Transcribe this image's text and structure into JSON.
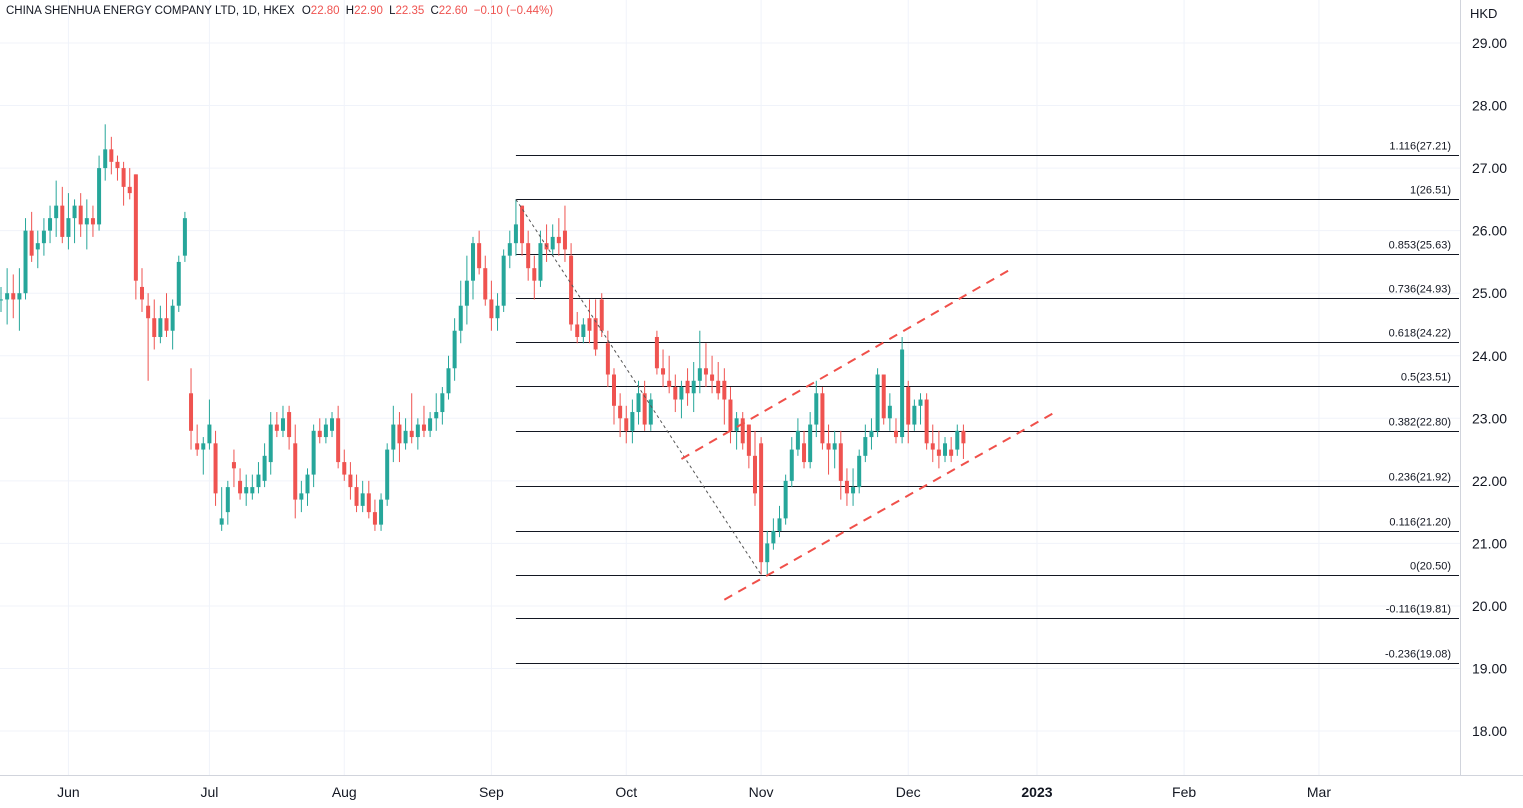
{
  "legend": {
    "symbol": "CHINA SHENHUA ENERGY COMPANY LTD, 1D, HKEX",
    "open_label": "O",
    "open": "22.80",
    "high_label": "H",
    "high": "22.90",
    "low_label": "L",
    "low": "22.35",
    "close_label": "C",
    "close": "22.60",
    "change": "−0.10 (−0.44%)"
  },
  "currency": "HKD",
  "colors": {
    "up": "#26a69a",
    "down": "#ef5350",
    "grid": "#f0f3fa",
    "fib": "#131722",
    "channel": "#f0504a",
    "axis_border": "#d1d4dc"
  },
  "chart_data": {
    "type": "candlestick",
    "title": "CHINA SHENHUA ENERGY COMPANY LTD, 1D, HKEX",
    "ylabel": "HKD",
    "ylim": [
      17.3,
      29.3
    ],
    "y_ticks": [
      "18.00",
      "19.00",
      "20.00",
      "21.00",
      "22.00",
      "23.00",
      "24.00",
      "25.00",
      "26.00",
      "27.00",
      "28.00",
      "29.00"
    ],
    "x_ticks": [
      {
        "label": "Jun",
        "bar": 11,
        "bold": false
      },
      {
        "label": "Jul",
        "bar": 34,
        "bold": false
      },
      {
        "label": "Aug",
        "bar": 56,
        "bold": false
      },
      {
        "label": "Sep",
        "bar": 80,
        "bold": false
      },
      {
        "label": "Oct",
        "bar": 102,
        "bold": false
      },
      {
        "label": "Nov",
        "bar": 124,
        "bold": false
      },
      {
        "label": "Dec",
        "bar": 148,
        "bold": false
      },
      {
        "label": "2023",
        "bar": 169,
        "bold": true
      },
      {
        "label": "Feb",
        "bar": 193,
        "bold": false
      },
      {
        "label": "Mar",
        "bar": 215,
        "bold": false
      }
    ],
    "bar_scale": {
      "first_bar_x": 1,
      "bar_spacing": 6.13
    },
    "candles": [
      [
        24.9,
        25.1,
        24.7,
        24.9
      ],
      [
        24.9,
        25.4,
        24.5,
        25.0
      ],
      [
        25.0,
        25.3,
        24.6,
        24.9
      ],
      [
        24.9,
        25.4,
        24.4,
        25.0
      ],
      [
        25.0,
        26.2,
        24.9,
        26.0
      ],
      [
        26.0,
        26.3,
        25.5,
        25.6
      ],
      [
        25.7,
        26.0,
        25.4,
        25.8
      ],
      [
        25.8,
        26.2,
        25.6,
        26.0
      ],
      [
        26.0,
        26.4,
        25.8,
        26.2
      ],
      [
        26.2,
        26.8,
        25.9,
        26.4
      ],
      [
        26.4,
        26.7,
        25.8,
        25.9
      ],
      [
        25.9,
        26.6,
        25.7,
        26.2
      ],
      [
        26.2,
        26.5,
        25.8,
        26.4
      ],
      [
        26.4,
        26.6,
        25.9,
        26.1
      ],
      [
        26.1,
        26.5,
        25.7,
        26.2
      ],
      [
        26.2,
        26.4,
        25.9,
        26.1
      ],
      [
        26.1,
        27.2,
        26.0,
        27.0
      ],
      [
        27.0,
        27.7,
        26.8,
        27.3
      ],
      [
        27.3,
        27.5,
        26.9,
        27.1
      ],
      [
        27.1,
        27.2,
        26.8,
        27.0
      ],
      [
        27.0,
        27.1,
        26.4,
        26.7
      ],
      [
        26.7,
        27.0,
        26.5,
        26.6
      ],
      [
        26.9,
        26.9,
        24.9,
        25.2
      ],
      [
        25.1,
        25.4,
        24.7,
        24.9
      ],
      [
        24.8,
        25.0,
        23.6,
        24.6
      ],
      [
        24.6,
        24.9,
        24.1,
        24.3
      ],
      [
        24.3,
        24.8,
        24.2,
        24.6
      ],
      [
        24.6,
        25.0,
        24.3,
        24.4
      ],
      [
        24.4,
        24.9,
        24.1,
        24.8
      ],
      [
        24.8,
        25.6,
        24.7,
        25.5
      ],
      [
        25.6,
        26.3,
        25.5,
        26.2
      ],
      [
        23.4,
        23.8,
        22.5,
        22.8
      ],
      [
        22.6,
        22.9,
        22.4,
        22.5
      ],
      [
        22.5,
        22.7,
        22.1,
        22.6
      ],
      [
        22.6,
        23.3,
        22.5,
        22.9
      ],
      [
        22.6,
        22.8,
        21.6,
        21.8
      ],
      [
        21.3,
        21.9,
        21.2,
        21.4
      ],
      [
        21.5,
        22.0,
        21.3,
        21.9
      ],
      [
        22.3,
        22.5,
        21.9,
        22.2
      ],
      [
        22.0,
        22.2,
        21.7,
        21.8
      ],
      [
        21.8,
        22.1,
        21.6,
        21.9
      ],
      [
        21.8,
        22.1,
        21.7,
        21.9
      ],
      [
        21.9,
        22.3,
        21.8,
        22.1
      ],
      [
        22.0,
        22.6,
        21.9,
        22.4
      ],
      [
        22.3,
        23.1,
        22.1,
        22.9
      ],
      [
        22.9,
        23.1,
        22.7,
        22.8
      ],
      [
        22.8,
        23.2,
        22.7,
        23.0
      ],
      [
        23.1,
        23.2,
        22.5,
        22.7
      ],
      [
        22.6,
        22.9,
        21.4,
        21.7
      ],
      [
        21.7,
        22.0,
        21.5,
        21.8
      ],
      [
        21.8,
        22.2,
        21.6,
        22.1
      ],
      [
        22.1,
        22.9,
        21.9,
        22.8
      ],
      [
        22.8,
        23.0,
        22.6,
        22.7
      ],
      [
        22.7,
        23.0,
        22.6,
        22.9
      ],
      [
        22.8,
        23.1,
        22.7,
        23.0
      ],
      [
        23.0,
        23.2,
        22.2,
        22.3
      ],
      [
        22.3,
        22.5,
        22.0,
        22.1
      ],
      [
        22.1,
        22.3,
        21.7,
        21.9
      ],
      [
        21.9,
        22.1,
        21.5,
        21.6
      ],
      [
        21.6,
        22.0,
        21.5,
        21.8
      ],
      [
        21.8,
        22.0,
        21.4,
        21.5
      ],
      [
        21.5,
        21.7,
        21.2,
        21.3
      ],
      [
        21.3,
        21.8,
        21.2,
        21.7
      ],
      [
        21.7,
        22.6,
        21.6,
        22.5
      ],
      [
        22.5,
        23.2,
        22.3,
        22.9
      ],
      [
        22.9,
        23.1,
        22.3,
        22.6
      ],
      [
        22.6,
        23.0,
        22.5,
        22.8
      ],
      [
        22.8,
        23.4,
        22.6,
        22.7
      ],
      [
        22.7,
        23.0,
        22.5,
        22.9
      ],
      [
        22.9,
        23.2,
        22.7,
        22.8
      ],
      [
        22.8,
        23.1,
        22.7,
        23.0
      ],
      [
        23.0,
        23.4,
        22.8,
        23.1
      ],
      [
        23.1,
        23.5,
        22.9,
        23.4
      ],
      [
        23.4,
        24.0,
        23.3,
        23.8
      ],
      [
        23.8,
        24.6,
        23.6,
        24.4
      ],
      [
        24.4,
        25.2,
        24.2,
        24.8
      ],
      [
        24.8,
        25.6,
        24.5,
        25.2
      ],
      [
        25.2,
        25.9,
        24.9,
        25.8
      ],
      [
        25.8,
        26.0,
        25.3,
        25.4
      ],
      [
        25.4,
        25.6,
        24.8,
        24.9
      ],
      [
        24.9,
        25.2,
        24.4,
        24.6
      ],
      [
        24.6,
        25.0,
        24.4,
        24.8
      ],
      [
        24.8,
        25.7,
        24.7,
        25.6
      ],
      [
        25.6,
        26.0,
        25.4,
        25.8
      ],
      [
        25.8,
        26.5,
        25.6,
        26.1
      ],
      [
        26.4,
        26.4,
        25.6,
        25.8
      ],
      [
        25.8,
        26.0,
        25.2,
        25.4
      ],
      [
        25.4,
        25.6,
        24.9,
        25.2
      ],
      [
        25.2,
        26.0,
        25.1,
        25.8
      ],
      [
        25.8,
        26.1,
        25.5,
        25.7
      ],
      [
        25.7,
        26.1,
        25.6,
        25.9
      ],
      [
        25.9,
        26.2,
        25.6,
        25.8
      ],
      [
        26.0,
        26.4,
        25.5,
        25.7
      ],
      [
        25.6,
        25.8,
        24.4,
        24.5
      ],
      [
        24.5,
        24.7,
        24.2,
        24.3
      ],
      [
        24.3,
        24.6,
        24.2,
        24.5
      ],
      [
        24.6,
        24.9,
        24.2,
        24.4
      ],
      [
        24.6,
        24.9,
        24.0,
        24.1
      ],
      [
        24.9,
        25.0,
        24.3,
        24.4
      ],
      [
        24.2,
        24.4,
        23.5,
        23.7
      ],
      [
        23.7,
        23.8,
        22.9,
        23.2
      ],
      [
        23.2,
        23.4,
        22.7,
        23.0
      ],
      [
        23.0,
        23.2,
        22.6,
        22.8
      ],
      [
        22.8,
        23.3,
        22.6,
        23.1
      ],
      [
        23.1,
        23.6,
        22.9,
        23.4
      ],
      [
        23.4,
        23.6,
        22.8,
        22.9
      ],
      [
        22.9,
        23.4,
        22.8,
        23.3
      ],
      [
        24.3,
        24.4,
        23.7,
        23.8
      ],
      [
        23.8,
        24.1,
        23.5,
        23.7
      ],
      [
        23.6,
        24.0,
        23.4,
        23.5
      ],
      [
        23.5,
        23.7,
        23.1,
        23.3
      ],
      [
        23.3,
        23.6,
        23.0,
        23.5
      ],
      [
        23.6,
        23.8,
        23.2,
        23.4
      ],
      [
        23.4,
        23.9,
        23.1,
        23.6
      ],
      [
        23.6,
        24.4,
        23.4,
        23.8
      ],
      [
        23.8,
        24.2,
        23.5,
        23.7
      ],
      [
        23.7,
        24.0,
        23.4,
        23.6
      ],
      [
        23.6,
        23.9,
        23.3,
        23.4
      ],
      [
        23.6,
        23.8,
        22.9,
        23.3
      ],
      [
        23.3,
        23.5,
        22.6,
        22.8
      ],
      [
        22.8,
        23.1,
        22.5,
        23.0
      ],
      [
        23.0,
        23.1,
        22.5,
        22.6
      ],
      [
        22.9,
        22.9,
        22.2,
        22.4
      ],
      [
        22.4,
        22.8,
        21.6,
        21.8
      ],
      [
        22.6,
        22.7,
        20.5,
        20.7
      ],
      [
        20.7,
        21.2,
        20.5,
        21.0
      ],
      [
        21.0,
        21.4,
        20.9,
        21.2
      ],
      [
        21.2,
        21.6,
        21.1,
        21.4
      ],
      [
        21.4,
        22.1,
        21.3,
        22.0
      ],
      [
        22.0,
        22.7,
        21.9,
        22.5
      ],
      [
        22.5,
        23.0,
        22.4,
        22.8
      ],
      [
        22.6,
        22.8,
        22.2,
        22.3
      ],
      [
        22.3,
        23.1,
        22.2,
        22.9
      ],
      [
        22.9,
        23.6,
        22.7,
        23.4
      ],
      [
        23.4,
        23.5,
        22.5,
        22.6
      ],
      [
        22.6,
        22.9,
        22.1,
        22.5
      ],
      [
        22.5,
        22.8,
        22.2,
        22.6
      ],
      [
        22.6,
        22.8,
        21.7,
        22.0
      ],
      [
        22.0,
        22.2,
        21.6,
        21.8
      ],
      [
        21.8,
        22.2,
        21.6,
        21.9
      ],
      [
        21.9,
        22.5,
        21.8,
        22.4
      ],
      [
        22.4,
        22.9,
        22.3,
        22.7
      ],
      [
        22.7,
        23.0,
        22.5,
        22.8
      ],
      [
        22.8,
        23.8,
        22.7,
        23.7
      ],
      [
        23.7,
        23.7,
        22.9,
        23.0
      ],
      [
        23.0,
        23.4,
        22.8,
        23.2
      ],
      [
        22.8,
        23.0,
        22.6,
        22.7
      ],
      [
        22.7,
        24.3,
        22.6,
        24.1
      ],
      [
        23.5,
        23.6,
        22.6,
        22.9
      ],
      [
        22.9,
        23.3,
        22.8,
        23.2
      ],
      [
        23.2,
        23.4,
        22.9,
        23.3
      ],
      [
        23.3,
        23.4,
        22.5,
        22.6
      ],
      [
        22.6,
        22.9,
        22.3,
        22.5
      ],
      [
        22.5,
        22.8,
        22.2,
        22.4
      ],
      [
        22.4,
        22.7,
        22.3,
        22.6
      ],
      [
        22.5,
        22.7,
        22.3,
        22.4
      ],
      [
        22.5,
        22.9,
        22.4,
        22.8
      ],
      [
        22.8,
        22.9,
        22.35,
        22.6
      ]
    ],
    "fib_levels": [
      {
        "ratio": "1.116",
        "price": 27.21,
        "label": "1.116(27.21)"
      },
      {
        "ratio": "1",
        "price": 26.51,
        "label": "1(26.51)"
      },
      {
        "ratio": "0.853",
        "price": 25.63,
        "label": "0.853(25.63)"
      },
      {
        "ratio": "0.736",
        "price": 24.93,
        "label": "0.736(24.93)"
      },
      {
        "ratio": "0.618",
        "price": 24.22,
        "label": "0.618(24.22)"
      },
      {
        "ratio": "0.5",
        "price": 23.51,
        "label": "0.5(23.51)"
      },
      {
        "ratio": "0.382",
        "price": 22.8,
        "label": "0.382(22.80)"
      },
      {
        "ratio": "0.236",
        "price": 21.92,
        "label": "0.236(21.92)"
      },
      {
        "ratio": "0.116",
        "price": 21.2,
        "label": "0.116(21.20)"
      },
      {
        "ratio": "0",
        "price": 20.5,
        "label": "0(20.50)"
      },
      {
        "ratio": "-0.116",
        "price": 19.81,
        "label": "-0.116(19.81)"
      },
      {
        "ratio": "-0.236",
        "price": 19.08,
        "label": "-0.236(19.08)"
      }
    ],
    "fib_start_bar": 84,
    "fib_trend_line": {
      "from": {
        "bar": 84,
        "price": 26.5
      },
      "to": {
        "bar": 124,
        "price": 20.5
      }
    },
    "channel_lines": [
      {
        "from": {
          "bar": 111,
          "price": 22.35
        },
        "to": {
          "bar": 165,
          "price": 25.4
        }
      },
      {
        "from": {
          "bar": 118,
          "price": 20.1
        },
        "to": {
          "bar": 172,
          "price": 23.1
        }
      }
    ]
  }
}
